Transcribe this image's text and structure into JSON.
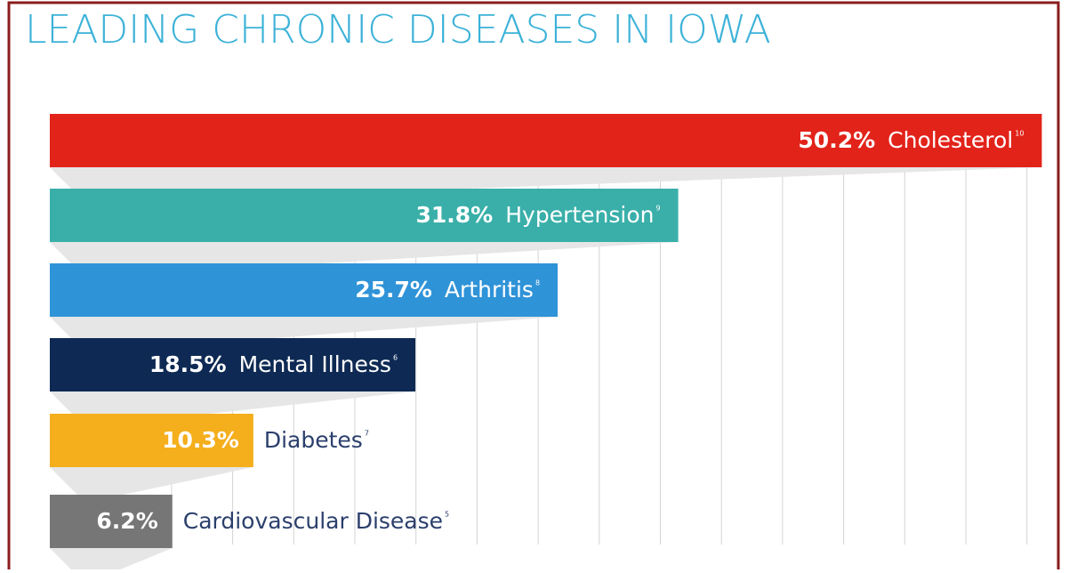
{
  "chart_data": {
    "type": "bar",
    "orientation": "horizontal",
    "title": "LEADING CHRONIC DISEASES IN IOWA",
    "categories": [
      "Cholesterol",
      "Hypertension",
      "Arthritis",
      "Mental Illness",
      "Diabetes",
      "Cardiovascular Disease"
    ],
    "footnotes": [
      "10",
      "9",
      "8",
      "6",
      "7",
      "5"
    ],
    "values": [
      50.2,
      31.8,
      25.7,
      18.5,
      10.3,
      6.2
    ],
    "value_labels": [
      "50.2%",
      "31.8%",
      "25.7%",
      "18.5%",
      "10.3%",
      "6.2%"
    ],
    "colors": [
      "#e2231a",
      "#3aafa9",
      "#2f93d8",
      "#0e2a54",
      "#f5ae1c",
      "#767676"
    ],
    "xlim": [
      0,
      50
    ]
  }
}
